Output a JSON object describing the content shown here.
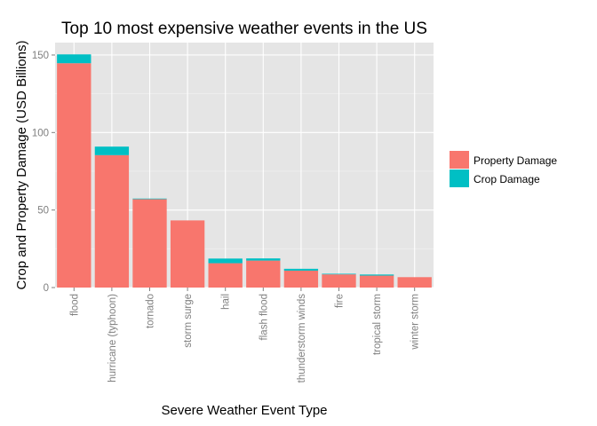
{
  "chart_data": {
    "type": "bar",
    "stacked": true,
    "title": "Top 10 most expensive weather events in the US",
    "xlabel": "Severe Weather Event Type",
    "ylabel": "Crop and Property Damage (USD Billions)",
    "ylim": [
      0,
      158
    ],
    "yticks": [
      0,
      50,
      100,
      150
    ],
    "grid": true,
    "legend_position": "right",
    "categories": [
      "flood",
      "hurricane (typhoon)",
      "tornado",
      "storm surge",
      "hail",
      "flash flood",
      "thunderstorm winds",
      "fire",
      "tropical storm",
      "winter storm"
    ],
    "series": [
      {
        "name": "Property Damage",
        "color": "#F8766D",
        "values": [
          144.7,
          85.4,
          57.0,
          43.3,
          15.7,
          17.4,
          10.9,
          8.5,
          7.7,
          6.7
        ]
      },
      {
        "name": "Crop Damage",
        "color": "#00BFC4",
        "values": [
          5.7,
          5.5,
          0.4,
          0.0,
          3.0,
          1.4,
          1.2,
          0.4,
          0.7,
          0.0
        ]
      }
    ],
    "panel_background": "#E5E5E5",
    "gridline_color": "#FFFFFF"
  }
}
